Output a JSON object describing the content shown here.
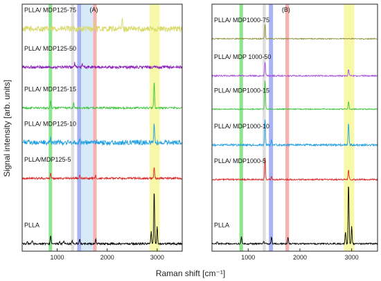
{
  "figure": {
    "ylabel": "Signal intensity [arb. units]",
    "xlabel": "Raman shift [cm⁻¹]"
  },
  "chart_data": [
    {
      "type": "line",
      "panel_label": "(A)",
      "xlim": [
        300,
        3500
      ],
      "x_ticks": [
        1000,
        2000,
        3000
      ],
      "y_ticks_shown": false,
      "grid": false,
      "highlight_bands": [
        {
          "from": 830,
          "to": 900,
          "color": "#7be07b"
        },
        {
          "from": 1280,
          "to": 1340,
          "color": "#d8d8d8"
        },
        {
          "from": 1400,
          "to": 1480,
          "color": "#9aa5f2"
        },
        {
          "from": 1480,
          "to": 1720,
          "color": "#cfe6f7"
        },
        {
          "from": 1720,
          "to": 1790,
          "color": "#f5a3a3"
        },
        {
          "from": 2850,
          "to": 3050,
          "color": "#f7f79a"
        }
      ],
      "series": [
        {
          "name": "PLLA/ MDP125-75",
          "color": "#d9d96a",
          "baseline": 0.9,
          "peaks": [
            [
              2300,
              0.04
            ],
            [
              1750,
              0.03
            ]
          ],
          "noise": 0.012
        },
        {
          "name": "PLLA/ MDP125-50",
          "color": "#8a1fb8",
          "baseline": 0.745,
          "peaks": [
            [
              1350,
              0.015
            ],
            [
              1500,
              0.012
            ]
          ],
          "noise": 0.006
        },
        {
          "name": "PLLA/ MDP125-15",
          "color": "#3bc43b",
          "baseline": 0.58,
          "peaks": [
            [
              870,
              0.03
            ],
            [
              1330,
              0.02
            ],
            [
              2940,
              0.11
            ]
          ],
          "noise": 0.004
        },
        {
          "name": "PLLA/ MDP125-10",
          "color": "#1f9ee0",
          "baseline": 0.44,
          "peaks": [
            [
              870,
              0.02
            ],
            [
              1450,
              0.015
            ],
            [
              2940,
              0.08
            ]
          ],
          "noise": 0.01
        },
        {
          "name": "PLLA/MDP125-5",
          "color": "#e02525",
          "baseline": 0.295,
          "peaks": [
            [
              870,
              0.02
            ],
            [
              1450,
              0.012
            ],
            [
              1770,
              0.01
            ],
            [
              2940,
              0.05
            ]
          ],
          "noise": 0.004
        },
        {
          "name": "PLLA",
          "color": "#000000",
          "baseline": 0.03,
          "peaks": [
            [
              400,
              0.01
            ],
            [
              500,
              0.015
            ],
            [
              870,
              0.035
            ],
            [
              1050,
              0.01
            ],
            [
              1130,
              0.012
            ],
            [
              1300,
              0.012
            ],
            [
              1450,
              0.02
            ],
            [
              1770,
              0.02
            ],
            [
              2880,
              0.05
            ],
            [
              2940,
              0.22
            ],
            [
              3000,
              0.07
            ]
          ],
          "noise": 0.004
        }
      ]
    },
    {
      "type": "line",
      "panel_label": "(B)",
      "xlim": [
        300,
        3500
      ],
      "x_ticks": [
        1000,
        2000,
        3000
      ],
      "y_ticks_shown": false,
      "grid": false,
      "highlight_bands": [
        {
          "from": 830,
          "to": 900,
          "color": "#7be07b"
        },
        {
          "from": 1280,
          "to": 1340,
          "color": "#d8d8d8"
        },
        {
          "from": 1400,
          "to": 1480,
          "color": "#9aa5f2"
        },
        {
          "from": 1720,
          "to": 1790,
          "color": "#f5a3a3"
        },
        {
          "from": 2850,
          "to": 3050,
          "color": "#f7f79a"
        }
      ],
      "series": [
        {
          "name": "PLLA/ MDP1000-75",
          "color": "#8f8f3a",
          "baseline": 0.86,
          "peaks": [
            [
              1325,
              0.06
            ]
          ],
          "noise": 0.002
        },
        {
          "name": "PLLA/ MDP 1000-50",
          "color": "#a54fe0",
          "baseline": 0.71,
          "peaks": [
            [
              1325,
              0.06
            ],
            [
              2940,
              0.025
            ]
          ],
          "noise": 0.003
        },
        {
          "name": "PLLA/ MDP1000-15",
          "color": "#3bc43b",
          "baseline": 0.575,
          "peaks": [
            [
              1325,
              0.12
            ],
            [
              2940,
              0.03
            ]
          ],
          "noise": 0.002
        },
        {
          "name": "PLLA/ MDP1000-10",
          "color": "#1f9ee0",
          "baseline": 0.43,
          "peaks": [
            [
              1325,
              0.11
            ],
            [
              1450,
              0.02
            ],
            [
              2940,
              0.09
            ]
          ],
          "noise": 0.004
        },
        {
          "name": "PLLA/ MDP1000-5",
          "color": "#e02525",
          "baseline": 0.29,
          "peaks": [
            [
              1325,
              0.09
            ],
            [
              1450,
              0.015
            ],
            [
              2940,
              0.04
            ]
          ],
          "noise": 0.003
        },
        {
          "name": "PLLA",
          "color": "#000000",
          "baseline": 0.03,
          "peaks": [
            [
              400,
              0.01
            ],
            [
              870,
              0.03
            ],
            [
              1300,
              0.012
            ],
            [
              1450,
              0.025
            ],
            [
              1770,
              0.025
            ],
            [
              2880,
              0.05
            ],
            [
              2940,
              0.25
            ],
            [
              3000,
              0.07
            ]
          ],
          "noise": 0.003
        }
      ]
    }
  ]
}
